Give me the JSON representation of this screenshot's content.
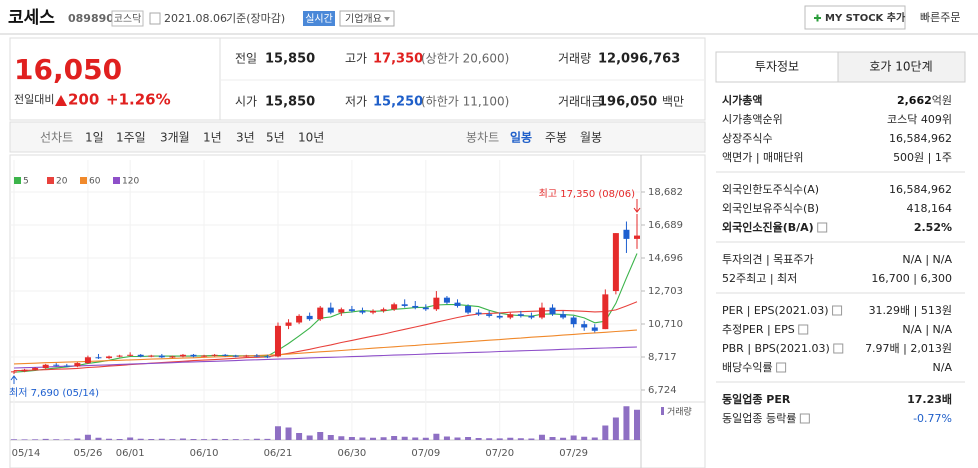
{
  "header": {
    "name": "코세스",
    "code": "089890",
    "market": "코스닥",
    "date": "2021.08.06",
    "basis": "기준(장마감)",
    "realtime": "실시간",
    "overview": "기업개요",
    "mystock": "MY STOCK 추가",
    "quick_order": "빠른주문"
  },
  "quote": {
    "price": "16,050",
    "change_label": "전일대비",
    "change": "200",
    "change_pct": "+1.26%",
    "up_color": "#e0201f",
    "cells": [
      {
        "label": "전일",
        "value": "15,850"
      },
      {
        "label": "고가",
        "value": "17,350",
        "note": "(상한가 20,600)",
        "color": "#e0201f"
      },
      {
        "label": "거래량",
        "value": "12,096,763"
      },
      {
        "label": "시가",
        "value": "15,850"
      },
      {
        "label": "저가",
        "value": "15,250",
        "note": "(하한가 11,100)",
        "color": "#1f5fc9"
      },
      {
        "label": "거래대금",
        "value": "196,050",
        "unit": "백만"
      }
    ]
  },
  "toolbar": {
    "line_label": "선차트",
    "periods": [
      "1일",
      "1주일",
      "3개월",
      "1년",
      "3년",
      "5년",
      "10년"
    ],
    "candle_label": "봉차트",
    "candle_periods": [
      "일봉",
      "주봉",
      "월봉"
    ],
    "active": "일봉"
  },
  "panel": {
    "tabs": [
      "투자정보",
      "호가 10단계"
    ],
    "groups": [
      [
        {
          "label": "시가총액",
          "value": "2,662",
          "unit": "억원",
          "bold": true
        },
        {
          "label": "시가총액순위",
          "value": "코스닥 409위"
        },
        {
          "label": "상장주식수",
          "value": "16,584,962"
        },
        {
          "label": "액면가 | 매매단위",
          "value": "500원 | 1주"
        }
      ],
      [
        {
          "label": "외국인한도주식수(A)",
          "value": "16,584,962"
        },
        {
          "label": "외국인보유주식수(B)",
          "value": "418,164"
        },
        {
          "label": "외국인소진율(B/A)",
          "value": "2.52%",
          "bold": true,
          "help": true
        }
      ],
      [
        {
          "label": "투자의견 | 목표주가",
          "value": "N/A | N/A"
        },
        {
          "label": "52주최고 | 최저",
          "value": "16,700 | 6,300"
        }
      ],
      [
        {
          "label": "PER | EPS(2021.03)",
          "value": "31.29배 | 513원",
          "help": true
        },
        {
          "label": "추정PER | EPS",
          "value": "N/A | N/A",
          "help": true
        },
        {
          "label": "PBR | BPS(2021.03)",
          "value": "7.97배 | 2,013원",
          "help": true
        },
        {
          "label": "배당수익률",
          "value": "N/A",
          "help": true
        }
      ],
      [
        {
          "label": "동일업종 PER",
          "value": "17.23배",
          "bold": true
        },
        {
          "label": "동일업종 등락률",
          "value": "-0.77%",
          "help": true,
          "color": "#1f5fc9"
        }
      ]
    ]
  },
  "chart": {
    "type": "candlestick",
    "up_color": "#e52b2b",
    "down_color": "#1d5fd0",
    "volume_color": "#8e6fc3",
    "high_label": "최고 17,350 (08/06)",
    "low_label": "최저 7,690 (05/14)",
    "volume_label": "거래량",
    "ylim": [
      6724,
      18682
    ],
    "yticks": [
      {
        "value": 6724,
        "label": "6,724"
      },
      {
        "value": 8717,
        "label": "8,717"
      },
      {
        "value": 10710,
        "label": "10,710"
      },
      {
        "value": 12703,
        "label": "12,703"
      },
      {
        "value": 14696,
        "label": "14,696"
      },
      {
        "value": 16689,
        "label": "16,689"
      },
      {
        "value": 18682,
        "label": "18,682"
      }
    ],
    "vlim": [
      0,
      14000000
    ],
    "categories": [
      "05/14",
      null,
      null,
      null,
      null,
      null,
      null,
      "05/26",
      null,
      null,
      null,
      "06/01",
      null,
      null,
      null,
      null,
      null,
      null,
      "06/10",
      null,
      null,
      null,
      null,
      null,
      null,
      "06/21",
      null,
      null,
      null,
      null,
      null,
      null,
      "06/30",
      null,
      null,
      null,
      null,
      null,
      null,
      "07/09",
      null,
      null,
      null,
      null,
      null,
      null,
      "07/20",
      null,
      null,
      null,
      null,
      null,
      null,
      "07/29",
      null,
      null,
      null,
      null,
      null,
      null
    ],
    "open": [
      7800,
      7850,
      7950,
      8050,
      8250,
      8200,
      8150,
      8350,
      8700,
      8650,
      8750,
      8800,
      8850,
      8750,
      8800,
      8700,
      8750,
      8850,
      8750,
      8800,
      8850,
      8800,
      8750,
      8800,
      8750,
      8750,
      10600,
      10800,
      11200,
      11000,
      11700,
      11400,
      11600,
      11500,
      11400,
      11500,
      11600,
      11900,
      11800,
      11700,
      11600,
      12300,
      12000,
      11800,
      11400,
      11300,
      11200,
      11100,
      11300,
      11200,
      11100,
      11700,
      11300,
      11100,
      10700,
      10500,
      10400,
      12700,
      16400,
      15850
    ],
    "high": [
      7900,
      8000,
      8100,
      8300,
      8350,
      8300,
      8400,
      8800,
      8900,
      8800,
      8850,
      9000,
      8900,
      8850,
      8900,
      8800,
      8900,
      8900,
      8850,
      8900,
      8900,
      8850,
      8850,
      8900,
      8850,
      10800,
      11000,
      11300,
      11400,
      11800,
      12000,
      11700,
      11800,
      11700,
      11600,
      11700,
      12000,
      12200,
      12100,
      11900,
      12700,
      12400,
      12200,
      11900,
      11600,
      11500,
      11400,
      11400,
      11500,
      11400,
      12000,
      11900,
      11500,
      11200,
      10900,
      10700,
      12800,
      16200,
      16900,
      17350
    ],
    "low": [
      7690,
      7800,
      7900,
      8000,
      8150,
      8100,
      8100,
      8300,
      8600,
      8600,
      8700,
      8750,
      8700,
      8700,
      8650,
      8650,
      8700,
      8700,
      8700,
      8750,
      8750,
      8700,
      8700,
      8700,
      8650,
      8700,
      10400,
      10700,
      10900,
      10900,
      11300,
      11200,
      11400,
      11300,
      11300,
      11400,
      11500,
      11700,
      11600,
      11500,
      11500,
      11900,
      11700,
      11300,
      11200,
      11100,
      11000,
      11000,
      11100,
      11000,
      11000,
      11200,
      11000,
      10500,
      10300,
      10200,
      10400,
      12500,
      15000,
      15250
    ],
    "close": [
      7850,
      7950,
      8050,
      8250,
      8200,
      8150,
      8350,
      8700,
      8650,
      8750,
      8800,
      8850,
      8750,
      8800,
      8700,
      8750,
      8850,
      8750,
      8800,
      8850,
      8800,
      8750,
      8800,
      8750,
      8700,
      10600,
      10800,
      11200,
      11000,
      11700,
      11400,
      11600,
      11500,
      11400,
      11500,
      11600,
      11900,
      11800,
      11700,
      11600,
      12300,
      12000,
      11800,
      11400,
      11300,
      11200,
      11100,
      11300,
      11200,
      11100,
      11700,
      11300,
      11100,
      10700,
      10500,
      10300,
      12500,
      16200,
      15850,
      16050
    ],
    "volume": [
      300000,
      250000,
      280000,
      450000,
      300000,
      250000,
      600000,
      2100000,
      900000,
      500000,
      400000,
      1000000,
      500000,
      400000,
      500000,
      350000,
      600000,
      400000,
      350000,
      450000,
      400000,
      350000,
      300000,
      500000,
      450000,
      5500000,
      5000000,
      2800000,
      1800000,
      3200000,
      2000000,
      1500000,
      1200000,
      1000000,
      900000,
      1100000,
      1600000,
      1300000,
      1000000,
      900000,
      2500000,
      1400000,
      1000000,
      1200000,
      800000,
      700000,
      650000,
      900000,
      700000,
      600000,
      2100000,
      1200000,
      900000,
      1800000,
      1300000,
      1000000,
      5800000,
      9000000,
      13500000,
      12096763
    ],
    "series": [
      {
        "name": "5",
        "color": "#3cb44b",
        "values": [
          7800,
          7850,
          7900,
          7980,
          8060,
          8120,
          8200,
          8330,
          8410,
          8520,
          8650,
          8750,
          8750,
          8770,
          8770,
          8770,
          8770,
          8770,
          8790,
          8800,
          8810,
          8790,
          8790,
          8790,
          8770,
          9130,
          9530,
          9990,
          10460,
          11060,
          11140,
          11380,
          11440,
          11520,
          11480,
          11500,
          11600,
          11640,
          11700,
          11720,
          11860,
          11880,
          11880,
          11820,
          11760,
          11540,
          11360,
          11260,
          11220,
          11180,
          11300,
          11320,
          11280,
          11240,
          11080,
          10780,
          10880,
          11960,
          13480,
          14970
        ]
      },
      {
        "name": "20",
        "color": "#e8413c",
        "values": [
          7900,
          7910,
          7930,
          7950,
          7980,
          8000,
          8030,
          8080,
          8120,
          8170,
          8210,
          8260,
          8300,
          8340,
          8380,
          8420,
          8460,
          8500,
          8530,
          8560,
          8600,
          8640,
          8680,
          8700,
          8720,
          8830,
          8940,
          9060,
          9180,
          9320,
          9450,
          9590,
          9720,
          9850,
          9980,
          10100,
          10250,
          10390,
          10530,
          10670,
          10820,
          10960,
          11100,
          11230,
          11320,
          11350,
          11380,
          11420,
          11450,
          11480,
          11500,
          11520,
          11530,
          11510,
          11480,
          11440,
          11460,
          11560,
          11800,
          12050
        ]
      },
      {
        "name": "60",
        "color": "#f0892b",
        "values": [
          8300,
          8320,
          8340,
          8370,
          8390,
          8410,
          8430,
          8450,
          8470,
          8500,
          8520,
          8540,
          8560,
          8590,
          8610,
          8630,
          8650,
          8670,
          8700,
          8720,
          8740,
          8760,
          8780,
          8810,
          8830,
          8850,
          8890,
          8940,
          8980,
          9030,
          9070,
          9110,
          9160,
          9200,
          9250,
          9290,
          9330,
          9380,
          9420,
          9470,
          9510,
          9550,
          9600,
          9640,
          9690,
          9730,
          9770,
          9820,
          9860,
          9910,
          9950,
          9990,
          10040,
          10080,
          10130,
          10170,
          10210,
          10260,
          10300,
          10350
        ]
      },
      {
        "name": "120",
        "color": "#8e4fc9",
        "values": [
          8050,
          8070,
          8090,
          8110,
          8140,
          8160,
          8180,
          8200,
          8220,
          8240,
          8270,
          8290,
          8310,
          8330,
          8350,
          8370,
          8400,
          8420,
          8440,
          8460,
          8480,
          8500,
          8530,
          8550,
          8570,
          8590,
          8610,
          8630,
          8660,
          8680,
          8700,
          8720,
          8740,
          8760,
          8790,
          8810,
          8830,
          8850,
          8870,
          8890,
          8920,
          8940,
          8960,
          8980,
          9000,
          9020,
          9050,
          9070,
          9090,
          9110,
          9130,
          9150,
          9180,
          9200,
          9220,
          9240,
          9260,
          9280,
          9300,
          9320
        ]
      }
    ]
  }
}
